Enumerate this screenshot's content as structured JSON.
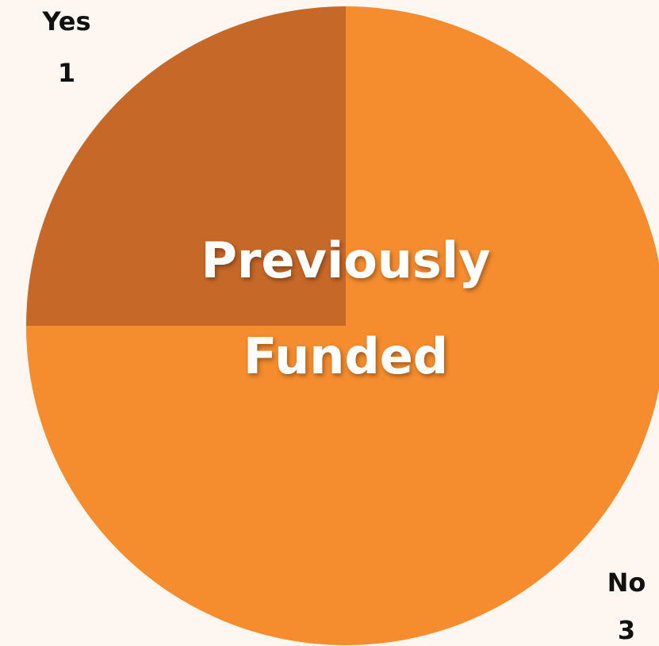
{
  "chart_data": {
    "type": "pie",
    "title_lines": [
      "Previously",
      "Funded"
    ],
    "slices": [
      {
        "label": "Yes",
        "value": 1,
        "value_text": "1",
        "color": "#c66828"
      },
      {
        "label": "No",
        "value": 3,
        "value_text": "3",
        "color": "#f58c2e"
      }
    ],
    "start_angle": "12 o'clock",
    "direction": "counter-clockwise",
    "legend": "none"
  },
  "colors": {
    "background": "#fdf6f1",
    "title": "#ffffff",
    "label": "#111111"
  }
}
